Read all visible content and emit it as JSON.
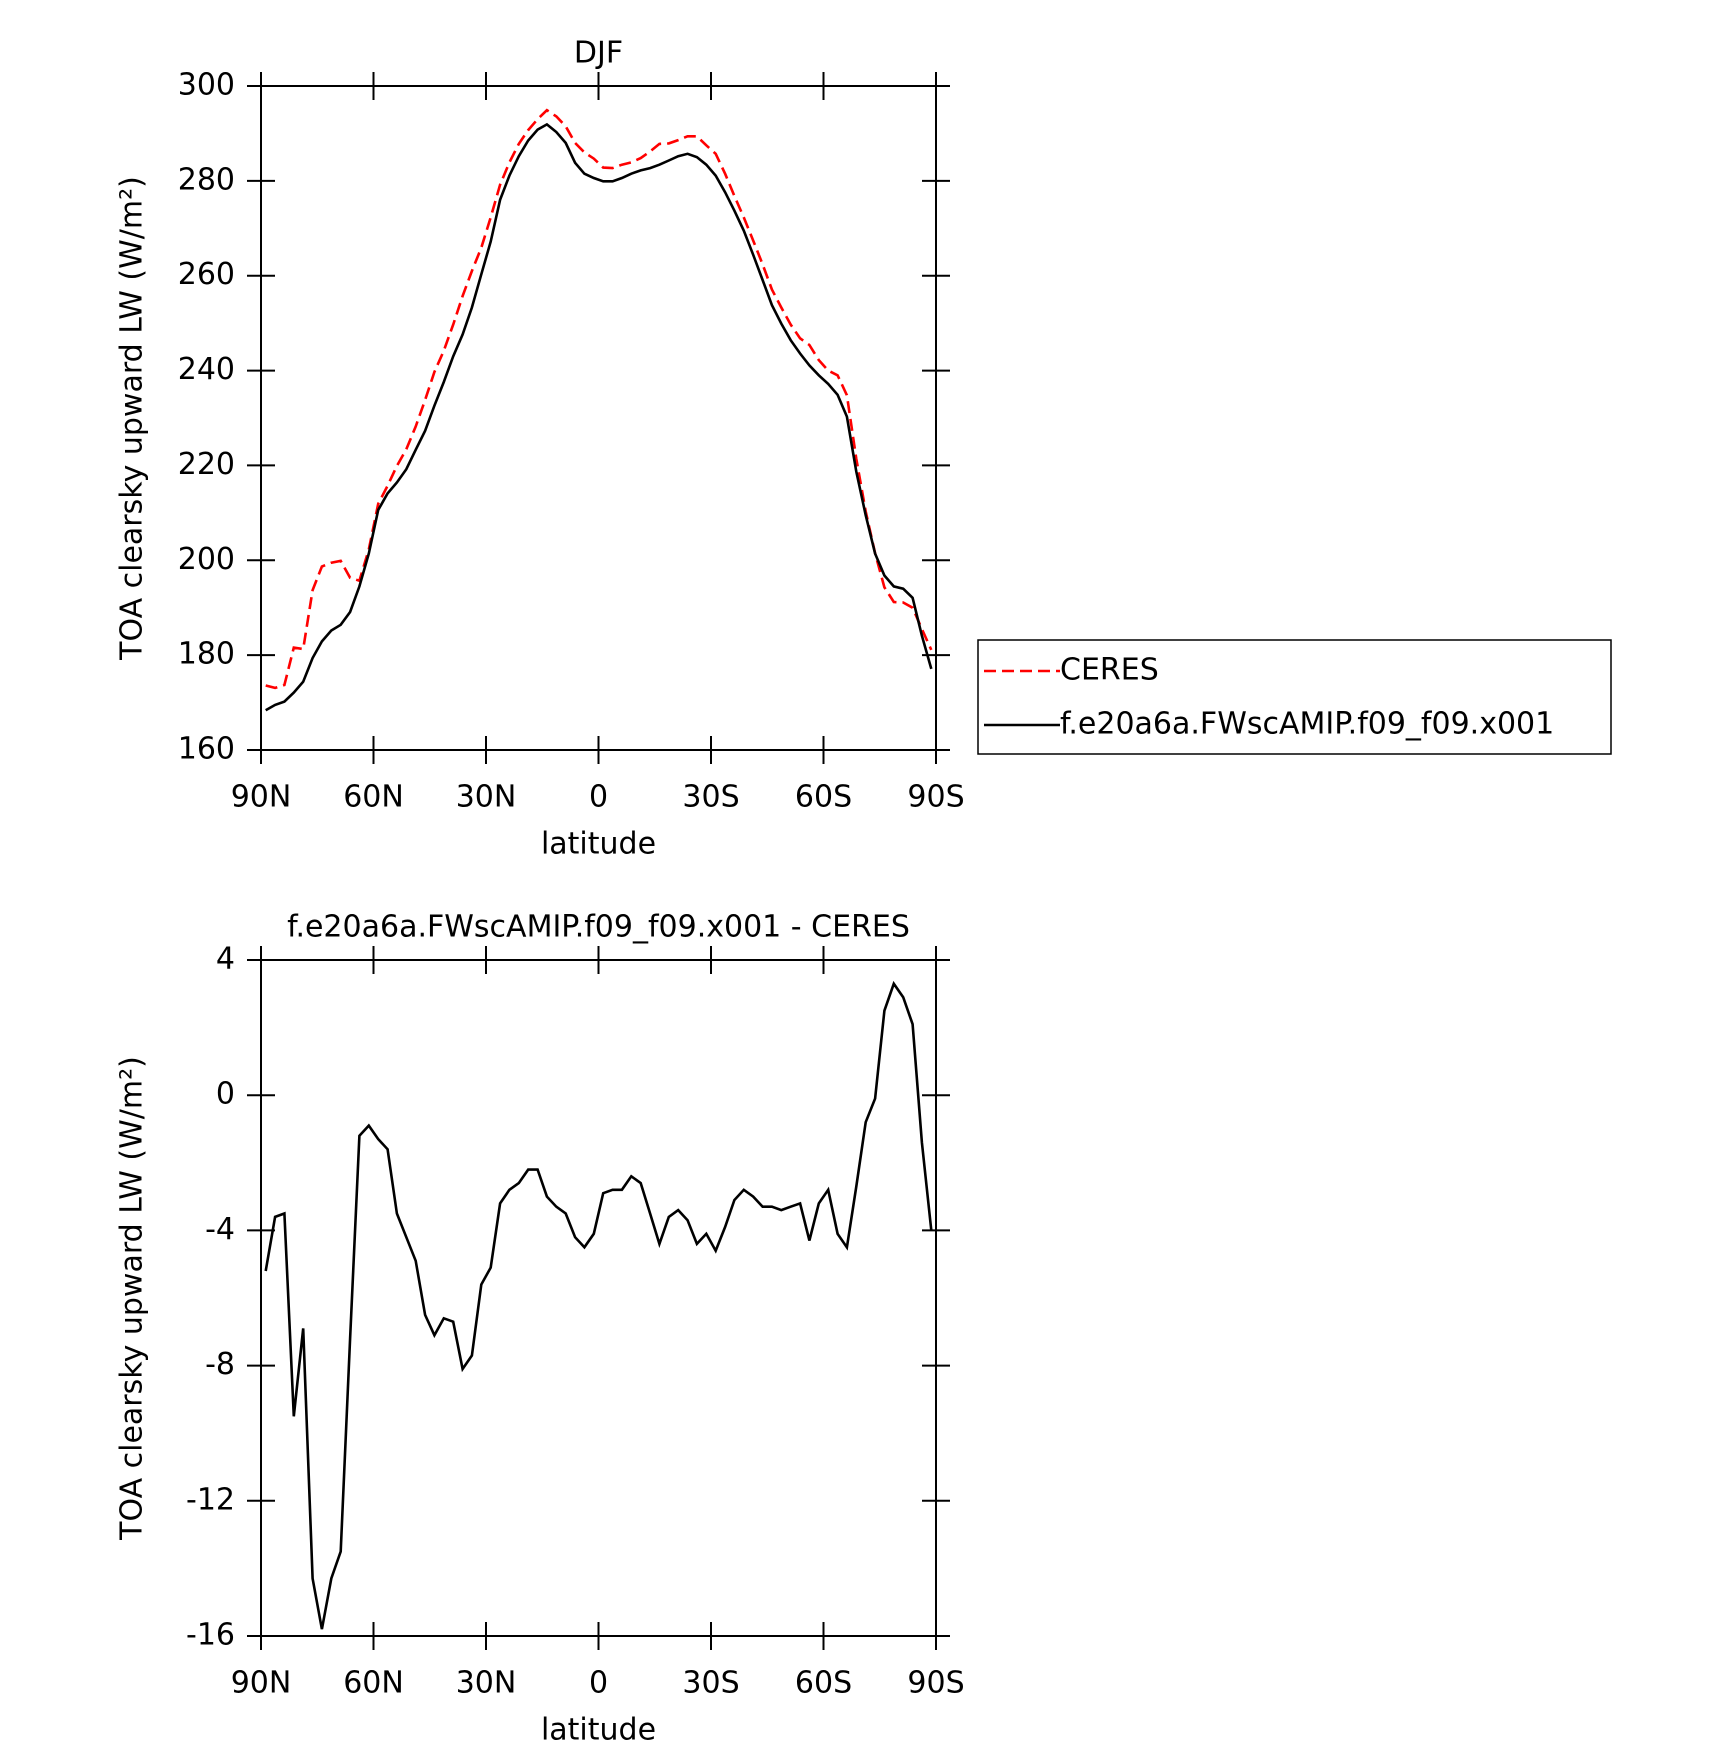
{
  "chart_data": [
    {
      "type": "line",
      "title": "DJF",
      "x_label": "latitude",
      "y_label": "TOA clearsky upward LW (W/m²)",
      "x": [
        88.75,
        86.25,
        83.75,
        81.25,
        78.75,
        76.25,
        73.75,
        71.25,
        68.75,
        66.25,
        63.75,
        61.25,
        58.75,
        56.25,
        53.75,
        51.25,
        48.75,
        46.25,
        43.75,
        41.25,
        38.75,
        36.25,
        33.75,
        31.25,
        28.75,
        26.25,
        23.75,
        21.25,
        18.75,
        16.25,
        13.75,
        11.25,
        8.75,
        6.25,
        3.75,
        1.25,
        -1.25,
        -3.75,
        -6.25,
        -8.75,
        -11.25,
        -13.75,
        -16.25,
        -18.75,
        -21.25,
        -23.75,
        -26.25,
        -28.75,
        -31.25,
        -33.75,
        -36.25,
        -38.75,
        -41.25,
        -43.75,
        -46.25,
        -48.75,
        -51.25,
        -53.75,
        -56.25,
        -58.75,
        -61.25,
        -63.75,
        -66.25,
        -68.75,
        -71.25,
        -73.75,
        -76.25,
        -78.75,
        -81.25,
        -83.75,
        -86.25,
        -88.75
      ],
      "xlim": [
        90,
        -90
      ],
      "xticks": [
        {
          "value": 90,
          "label": "90N"
        },
        {
          "value": 60,
          "label": "60N"
        },
        {
          "value": 30,
          "label": "30N"
        },
        0,
        {
          "value": -30,
          "label": "30S"
        },
        {
          "value": -60,
          "label": "60S"
        },
        {
          "value": -90,
          "label": "90S"
        }
      ],
      "ylim": [
        160,
        300
      ],
      "yticks": [
        160,
        180,
        200,
        220,
        240,
        260,
        280,
        300
      ],
      "legend": "right",
      "series": [
        {
          "name": "CERES",
          "color": "#ff0000",
          "linestyle": "dashed",
          "values": [
            173.6,
            173.1,
            173.7,
            181.6,
            181.3,
            193.7,
            198.7,
            199.5,
            199.9,
            196.3,
            195.7,
            202.3,
            211.9,
            215.7,
            219.9,
            223.4,
            228.2,
            233.8,
            239.7,
            244.2,
            249.7,
            255.7,
            261.0,
            265.9,
            272.3,
            279.2,
            283.9,
            287.8,
            290.7,
            293.0,
            294.9,
            293.6,
            291.5,
            288.0,
            286.0,
            284.7,
            282.8,
            282.7,
            283.4,
            283.9,
            284.8,
            286.2,
            287.8,
            287.9,
            288.6,
            289.4,
            289.4,
            287.5,
            285.7,
            281.5,
            276.8,
            272.3,
            267.4,
            262.4,
            257.1,
            253.3,
            249.7,
            246.8,
            245.4,
            242.2,
            240.0,
            239.0,
            234.8,
            221.4,
            210.3,
            201.5,
            194.3,
            191.2,
            191.1,
            190.0,
            185.5,
            181.1
          ]
        },
        {
          "name": "f.e20a6a.FWscAMIP.f09_f09.x001",
          "color": "#000000",
          "linestyle": "solid",
          "values": [
            168.4,
            169.5,
            170.2,
            172.1,
            174.4,
            179.4,
            182.9,
            185.2,
            186.4,
            189.1,
            194.5,
            201.4,
            210.6,
            214.1,
            216.4,
            219.2,
            223.3,
            227.3,
            232.6,
            237.6,
            243.0,
            247.6,
            253.3,
            260.3,
            267.2,
            276.0,
            281.1,
            285.2,
            288.5,
            290.8,
            291.9,
            290.3,
            288.0,
            283.8,
            281.5,
            280.6,
            279.9,
            279.9,
            280.6,
            281.5,
            282.2,
            282.7,
            283.4,
            284.3,
            285.2,
            285.7,
            285.0,
            283.4,
            281.1,
            277.6,
            273.7,
            269.5,
            264.4,
            259.1,
            253.8,
            249.9,
            246.4,
            243.6,
            241.1,
            239.0,
            237.2,
            234.9,
            230.3,
            218.7,
            209.5,
            201.4,
            196.8,
            194.5,
            194.0,
            192.1,
            184.1,
            177.1
          ]
        }
      ]
    },
    {
      "type": "line",
      "title": "f.e20a6a.FWscAMIP.f09_f09.x001 - CERES",
      "x_label": "latitude",
      "y_label": "TOA clearsky upward LW (W/m²)",
      "x": [
        88.75,
        86.25,
        83.75,
        81.25,
        78.75,
        76.25,
        73.75,
        71.25,
        68.75,
        66.25,
        63.75,
        61.25,
        58.75,
        56.25,
        53.75,
        51.25,
        48.75,
        46.25,
        43.75,
        41.25,
        38.75,
        36.25,
        33.75,
        31.25,
        28.75,
        26.25,
        23.75,
        21.25,
        18.75,
        16.25,
        13.75,
        11.25,
        8.75,
        6.25,
        3.75,
        1.25,
        -1.25,
        -3.75,
        -6.25,
        -8.75,
        -11.25,
        -13.75,
        -16.25,
        -18.75,
        -21.25,
        -23.75,
        -26.25,
        -28.75,
        -31.25,
        -33.75,
        -36.25,
        -38.75,
        -41.25,
        -43.75,
        -46.25,
        -48.75,
        -51.25,
        -53.75,
        -56.25,
        -58.75,
        -61.25,
        -63.75,
        -66.25,
        -68.75,
        -71.25,
        -73.75,
        -76.25,
        -78.75,
        -81.25,
        -83.75,
        -86.25,
        -88.75
      ],
      "xlim": [
        90,
        -90
      ],
      "xticks": [
        {
          "value": 90,
          "label": "90N"
        },
        {
          "value": 60,
          "label": "60N"
        },
        {
          "value": 30,
          "label": "30N"
        },
        0,
        {
          "value": -30,
          "label": "30S"
        },
        {
          "value": -60,
          "label": "60S"
        },
        {
          "value": -90,
          "label": "90S"
        }
      ],
      "ylim": [
        -16,
        4
      ],
      "yticks": [
        -16,
        -12,
        -8,
        -4,
        0,
        4
      ],
      "series": [
        {
          "color": "#000000",
          "linestyle": "solid",
          "values": [
            -5.2,
            -3.6,
            -3.5,
            -9.5,
            -6.9,
            -14.3,
            -15.8,
            -14.3,
            -13.5,
            -7.2,
            -1.2,
            -0.9,
            -1.3,
            -1.6,
            -3.5,
            -4.2,
            -4.9,
            -6.5,
            -7.1,
            -6.6,
            -6.7,
            -8.1,
            -7.7,
            -5.6,
            -5.1,
            -3.2,
            -2.8,
            -2.6,
            -2.2,
            -2.2,
            -3.0,
            -3.3,
            -3.5,
            -4.2,
            -4.5,
            -4.1,
            -2.9,
            -2.8,
            -2.8,
            -2.4,
            -2.6,
            -3.5,
            -4.4,
            -3.6,
            -3.4,
            -3.7,
            -4.4,
            -4.1,
            -4.6,
            -3.9,
            -3.1,
            -2.8,
            -3.0,
            -3.3,
            -3.3,
            -3.4,
            -3.3,
            -3.2,
            -4.3,
            -3.2,
            -2.8,
            -4.1,
            -4.5,
            -2.7,
            -0.8,
            -0.1,
            2.5,
            3.3,
            2.9,
            2.1,
            -1.4,
            -4.0
          ]
        }
      ]
    }
  ]
}
